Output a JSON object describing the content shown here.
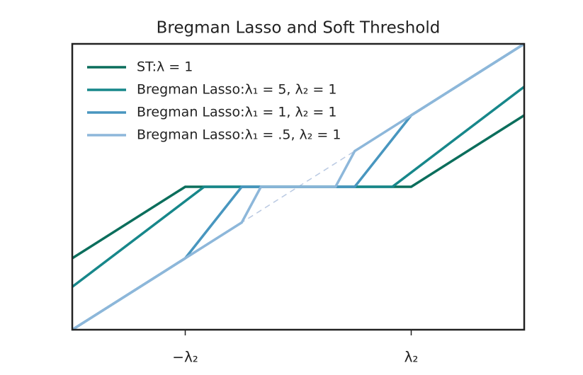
{
  "chart_data": {
    "type": "line",
    "title": "Bregman Lasso and Soft Threshold",
    "xlim": [
      -2,
      2
    ],
    "ylim": [
      -2,
      2
    ],
    "xticks": [
      {
        "value": -1,
        "label": "−λ₂"
      },
      {
        "value": 1,
        "label": "λ₂"
      }
    ],
    "grid": false,
    "legend": "upper left",
    "series": [
      {
        "name": "ST:λ = 1",
        "color": "#0b6e5c",
        "x": [
          -2,
          -1,
          1,
          2
        ],
        "values": [
          -1,
          0,
          0,
          1
        ]
      },
      {
        "name": "Bregman Lasso:λ₁ = 5, λ₂ = 1",
        "color": "#17878a",
        "x": [
          -2,
          -0.833,
          0.833,
          2
        ],
        "values": [
          -1.4,
          0,
          0,
          1.4
        ]
      },
      {
        "name": "Bregman Lasso:λ₁ = 1, λ₂ = 1",
        "color": "#4896bf",
        "x": [
          -2,
          -1,
          -0.5,
          0.5,
          1,
          2
        ],
        "values": [
          -2,
          -1,
          0,
          0,
          1,
          2
        ]
      },
      {
        "name": "Bregman Lasso:λ₁ = .5, λ₂ = 1",
        "color": "#8db7da",
        "x": [
          -2,
          -0.5,
          -0.33,
          0.33,
          0.5,
          2
        ],
        "values": [
          -2,
          -0.5,
          0,
          0,
          0.5,
          2
        ]
      },
      {
        "color": "#b9c9e2",
        "dashed": true,
        "x": [
          -2,
          2
        ],
        "values": [
          -2,
          2
        ]
      }
    ]
  }
}
